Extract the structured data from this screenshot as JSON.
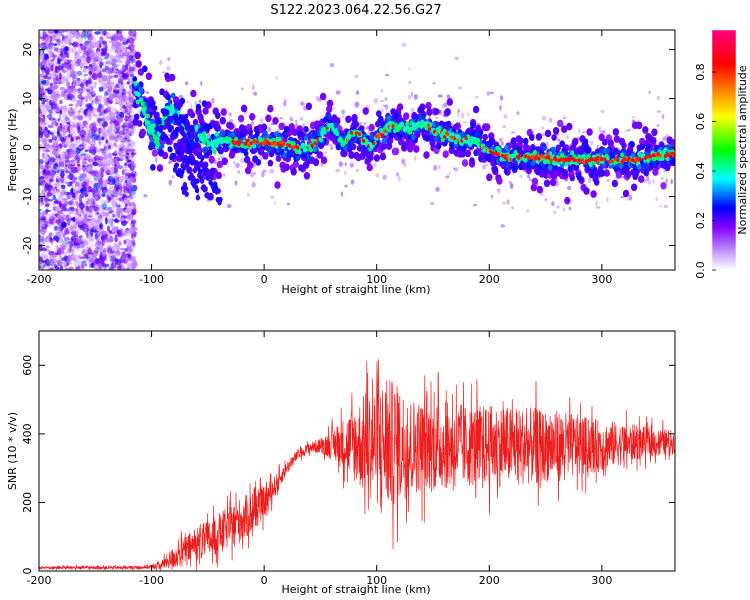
{
  "title": "S122.2023.064.22.56.G27",
  "colors": {
    "snr_line": "#ee1c1c",
    "axis": "#000000",
    "background": "#ffffff"
  },
  "chart_data": [
    {
      "type": "heatmap",
      "xlabel": "Height of straight line (km)",
      "ylabel": "Frequency (Hz)",
      "xlim": [
        -200,
        365
      ],
      "ylim": [
        -25,
        24
      ],
      "x_ticks": [
        "-200",
        "-100",
        "0",
        "100",
        "200",
        "300"
      ],
      "y_ticks": [
        "20",
        "10",
        "0",
        "-10",
        "-20"
      ],
      "colorbar": {
        "label": "Normalized spectral amplitude",
        "range": [
          0,
          0.97
        ],
        "ticks": [
          "0.0",
          "0.2",
          "0.4",
          "0.6",
          "0.8"
        ],
        "colormap": [
          "#ffffff",
          "#8000ff",
          "#0000ff",
          "#00ffff",
          "#00ff00",
          "#ffff00",
          "#ff0000",
          "#ff0080"
        ]
      },
      "ridge_frequency": {
        "x": [
          -115,
          -110,
          -105,
          -100,
          -95,
          -90,
          -85,
          -80,
          -75,
          -70,
          -65,
          -60,
          -55,
          -50,
          -45,
          -40,
          -35,
          -30,
          -25,
          -20,
          -10,
          0,
          10,
          20,
          30,
          40,
          50,
          55,
          60,
          65,
          70,
          75,
          80,
          85,
          90,
          95,
          100,
          105,
          110,
          115,
          120,
          125,
          130,
          135,
          140,
          145,
          150,
          155,
          160,
          165,
          170,
          175,
          180,
          185,
          190,
          195,
          200,
          210,
          220,
          230,
          240,
          250,
          260,
          270,
          280,
          290,
          300,
          310,
          320,
          330,
          340,
          350,
          360,
          365
        ],
        "y": [
          12,
          10,
          6,
          4,
          1,
          6,
          8,
          7,
          5,
          3,
          2,
          2.5,
          2,
          1.5,
          0.5,
          1,
          2,
          1,
          1,
          1,
          1,
          1,
          1,
          0.5,
          0,
          0,
          2,
          4,
          4.5,
          3,
          1,
          2,
          3.5,
          2.5,
          1,
          0,
          2,
          3,
          4,
          4.5,
          4.5,
          4,
          4,
          4.5,
          5,
          4.5,
          3.5,
          3,
          2.5,
          2.5,
          2,
          1.5,
          1.5,
          1.5,
          1,
          0,
          -1,
          -1.5,
          -2,
          -2,
          -2,
          -2,
          -2.5,
          -2.5,
          -2.5,
          -2.5,
          -2.5,
          -2.5,
          -2.5,
          -2.5,
          -2,
          -1.5,
          -1.5,
          -1.5
        ]
      }
    },
    {
      "type": "line",
      "xlabel": "Height of straight line (km)",
      "ylabel": "SNR (10 * v/v)",
      "xlim": [
        -200,
        365
      ],
      "ylim": [
        0,
        700
      ],
      "x_ticks": [
        "-200",
        "-100",
        "0",
        "100",
        "200",
        "300"
      ],
      "y_ticks": [
        "600",
        "400",
        "200",
        "0"
      ],
      "envelope": {
        "x": [
          -200,
          -120,
          -100,
          -90,
          -80,
          -70,
          -60,
          -50,
          -40,
          -30,
          -20,
          -10,
          0,
          10,
          20,
          30,
          40,
          50,
          60,
          70,
          80,
          90,
          100,
          110,
          120,
          130,
          140,
          150,
          160,
          170,
          180,
          190,
          200,
          210,
          220,
          230,
          240,
          250,
          260,
          270,
          280,
          290,
          300,
          310,
          320,
          330,
          340,
          350,
          360,
          365
        ],
        "mean": [
          10,
          10,
          12,
          20,
          40,
          60,
          80,
          90,
          110,
          130,
          150,
          170,
          200,
          250,
          300,
          340,
          360,
          365,
          370,
          370,
          370,
          370,
          370,
          370,
          368,
          366,
          365,
          365,
          365,
          365,
          365,
          365,
          365,
          365,
          365,
          365,
          365,
          365,
          365,
          365,
          365,
          365,
          365,
          370,
          370,
          375,
          375,
          375,
          375,
          375
        ],
        "spread": [
          6,
          6,
          8,
          20,
          45,
          55,
          65,
          75,
          80,
          80,
          90,
          80,
          60,
          40,
          25,
          20,
          20,
          30,
          60,
          100,
          150,
          200,
          240,
          260,
          230,
          190,
          180,
          180,
          170,
          170,
          160,
          160,
          160,
          160,
          150,
          150,
          150,
          140,
          140,
          130,
          120,
          110,
          100,
          90,
          80,
          70,
          60,
          55,
          50,
          45
        ]
      }
    }
  ]
}
